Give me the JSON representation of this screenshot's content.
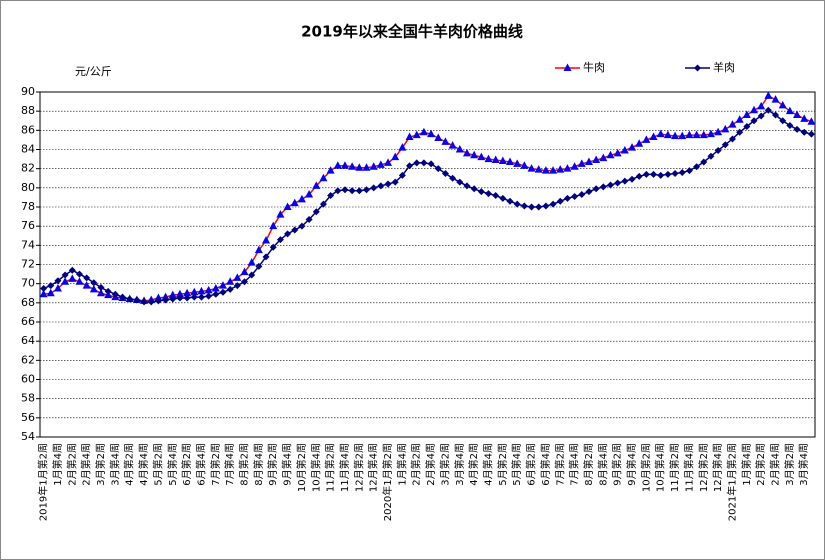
{
  "chart_data": {
    "type": "line",
    "title": "2019年以来全国牛羊肉价格曲线",
    "y_label": "元/公斤",
    "categories": [
      "2019年1月第2周",
      null,
      "1月第4周",
      null,
      "2月第2周",
      null,
      "2月第4周",
      null,
      "3月第2周",
      null,
      "3月第4周",
      null,
      "4月第2周",
      null,
      "4月第4周",
      null,
      "5月第2周",
      null,
      "5月第4周",
      null,
      "6月第2周",
      null,
      "6月第4周",
      null,
      "7月第2周",
      null,
      "7月第4周",
      null,
      "8月第2周",
      null,
      "8月第4周",
      null,
      "9月第2周",
      null,
      "9月第4周",
      null,
      "10月第2周",
      null,
      "10月第4周",
      null,
      "11月第2周",
      null,
      "11月第4周",
      null,
      "12月第2周",
      null,
      "12月第4周",
      null,
      "2020年1月第2周",
      null,
      "1月第4周",
      null,
      "2月第2周",
      null,
      "2月第4周",
      null,
      "3月第2周",
      null,
      "3月第4周",
      null,
      "4月第2周",
      null,
      "4月第4周",
      null,
      "5月第2周",
      null,
      "5月第4周",
      null,
      "6月第2周",
      null,
      "6月第4周",
      null,
      "7月第2周",
      null,
      "7月第4周",
      null,
      "8月第2周",
      null,
      "8月第4周",
      null,
      "9月第2周",
      null,
      "9月第4周",
      null,
      "10月第2周",
      null,
      "10月第4周",
      null,
      "11月第2周",
      null,
      "11月第4周",
      null,
      "12月第2周",
      null,
      "12月第4周",
      null,
      "2021年1月第2周",
      null,
      "1月第4周",
      null,
      "2月第2周",
      null,
      "2月第4周",
      null,
      "3月第2周",
      null,
      "3月第4周",
      null
    ],
    "series": [
      {
        "name": "牛肉",
        "color": "#ff0000",
        "marker_color": "#0000ff",
        "marker": "triangle",
        "values": [
          68.9,
          69.0,
          69.5,
          70.2,
          70.5,
          70.2,
          69.8,
          69.4,
          69.0,
          68.8,
          68.6,
          68.5,
          68.4,
          68.3,
          68.2,
          68.3,
          68.5,
          68.6,
          68.8,
          68.9,
          69.0,
          69.1,
          69.2,
          69.3,
          69.5,
          69.8,
          70.2,
          70.6,
          71.2,
          72.2,
          73.5,
          74.5,
          76.0,
          77.2,
          78.0,
          78.4,
          78.8,
          79.3,
          80.2,
          81.0,
          81.8,
          82.3,
          82.3,
          82.2,
          82.1,
          82.1,
          82.2,
          82.4,
          82.6,
          83.2,
          84.2,
          85.3,
          85.5,
          85.8,
          85.6,
          85.2,
          84.8,
          84.4,
          84.0,
          83.6,
          83.4,
          83.2,
          83.0,
          82.9,
          82.8,
          82.7,
          82.5,
          82.3,
          82.0,
          81.9,
          81.8,
          81.8,
          81.9,
          82.0,
          82.2,
          82.5,
          82.7,
          82.9,
          83.1,
          83.4,
          83.6,
          83.9,
          84.2,
          84.6,
          85.0,
          85.3,
          85.6,
          85.5,
          85.4,
          85.4,
          85.5,
          85.5,
          85.5,
          85.6,
          85.8,
          86.1,
          86.6,
          87.1,
          87.6,
          88.1,
          88.5,
          89.6,
          89.2,
          88.6,
          88.0,
          87.6,
          87.2,
          86.9
        ]
      },
      {
        "name": "羊肉",
        "color": "#000080",
        "marker_color": "#000080",
        "marker": "diamond",
        "values": [
          69.5,
          69.8,
          70.3,
          70.9,
          71.4,
          71.0,
          70.6,
          70.1,
          69.6,
          69.2,
          68.9,
          68.6,
          68.4,
          68.3,
          68.1,
          68.1,
          68.2,
          68.3,
          68.4,
          68.5,
          68.5,
          68.6,
          68.6,
          68.7,
          68.9,
          69.1,
          69.4,
          69.8,
          70.2,
          70.9,
          71.8,
          72.8,
          73.8,
          74.6,
          75.2,
          75.6,
          76.0,
          76.7,
          77.5,
          78.3,
          79.2,
          79.7,
          79.8,
          79.7,
          79.7,
          79.8,
          80.0,
          80.2,
          80.4,
          80.6,
          81.3,
          82.3,
          82.6,
          82.6,
          82.5,
          82.0,
          81.5,
          81.0,
          80.6,
          80.2,
          79.9,
          79.6,
          79.4,
          79.2,
          78.9,
          78.6,
          78.3,
          78.1,
          78.0,
          78.0,
          78.1,
          78.3,
          78.6,
          78.9,
          79.1,
          79.3,
          79.6,
          79.9,
          80.1,
          80.3,
          80.5,
          80.7,
          80.9,
          81.2,
          81.4,
          81.4,
          81.3,
          81.4,
          81.5,
          81.6,
          81.8,
          82.2,
          82.7,
          83.3,
          83.9,
          84.5,
          85.1,
          85.8,
          86.4,
          87.0,
          87.5,
          88.1,
          87.6,
          87.0,
          86.5,
          86.1,
          85.8,
          85.6
        ]
      }
    ],
    "ylim": [
      54,
      90
    ],
    "yticks": [
      54,
      56,
      58,
      60,
      62,
      64,
      66,
      68,
      70,
      72,
      74,
      76,
      78,
      80,
      82,
      84,
      86,
      88,
      90
    ],
    "grid": true,
    "legend": "top"
  }
}
